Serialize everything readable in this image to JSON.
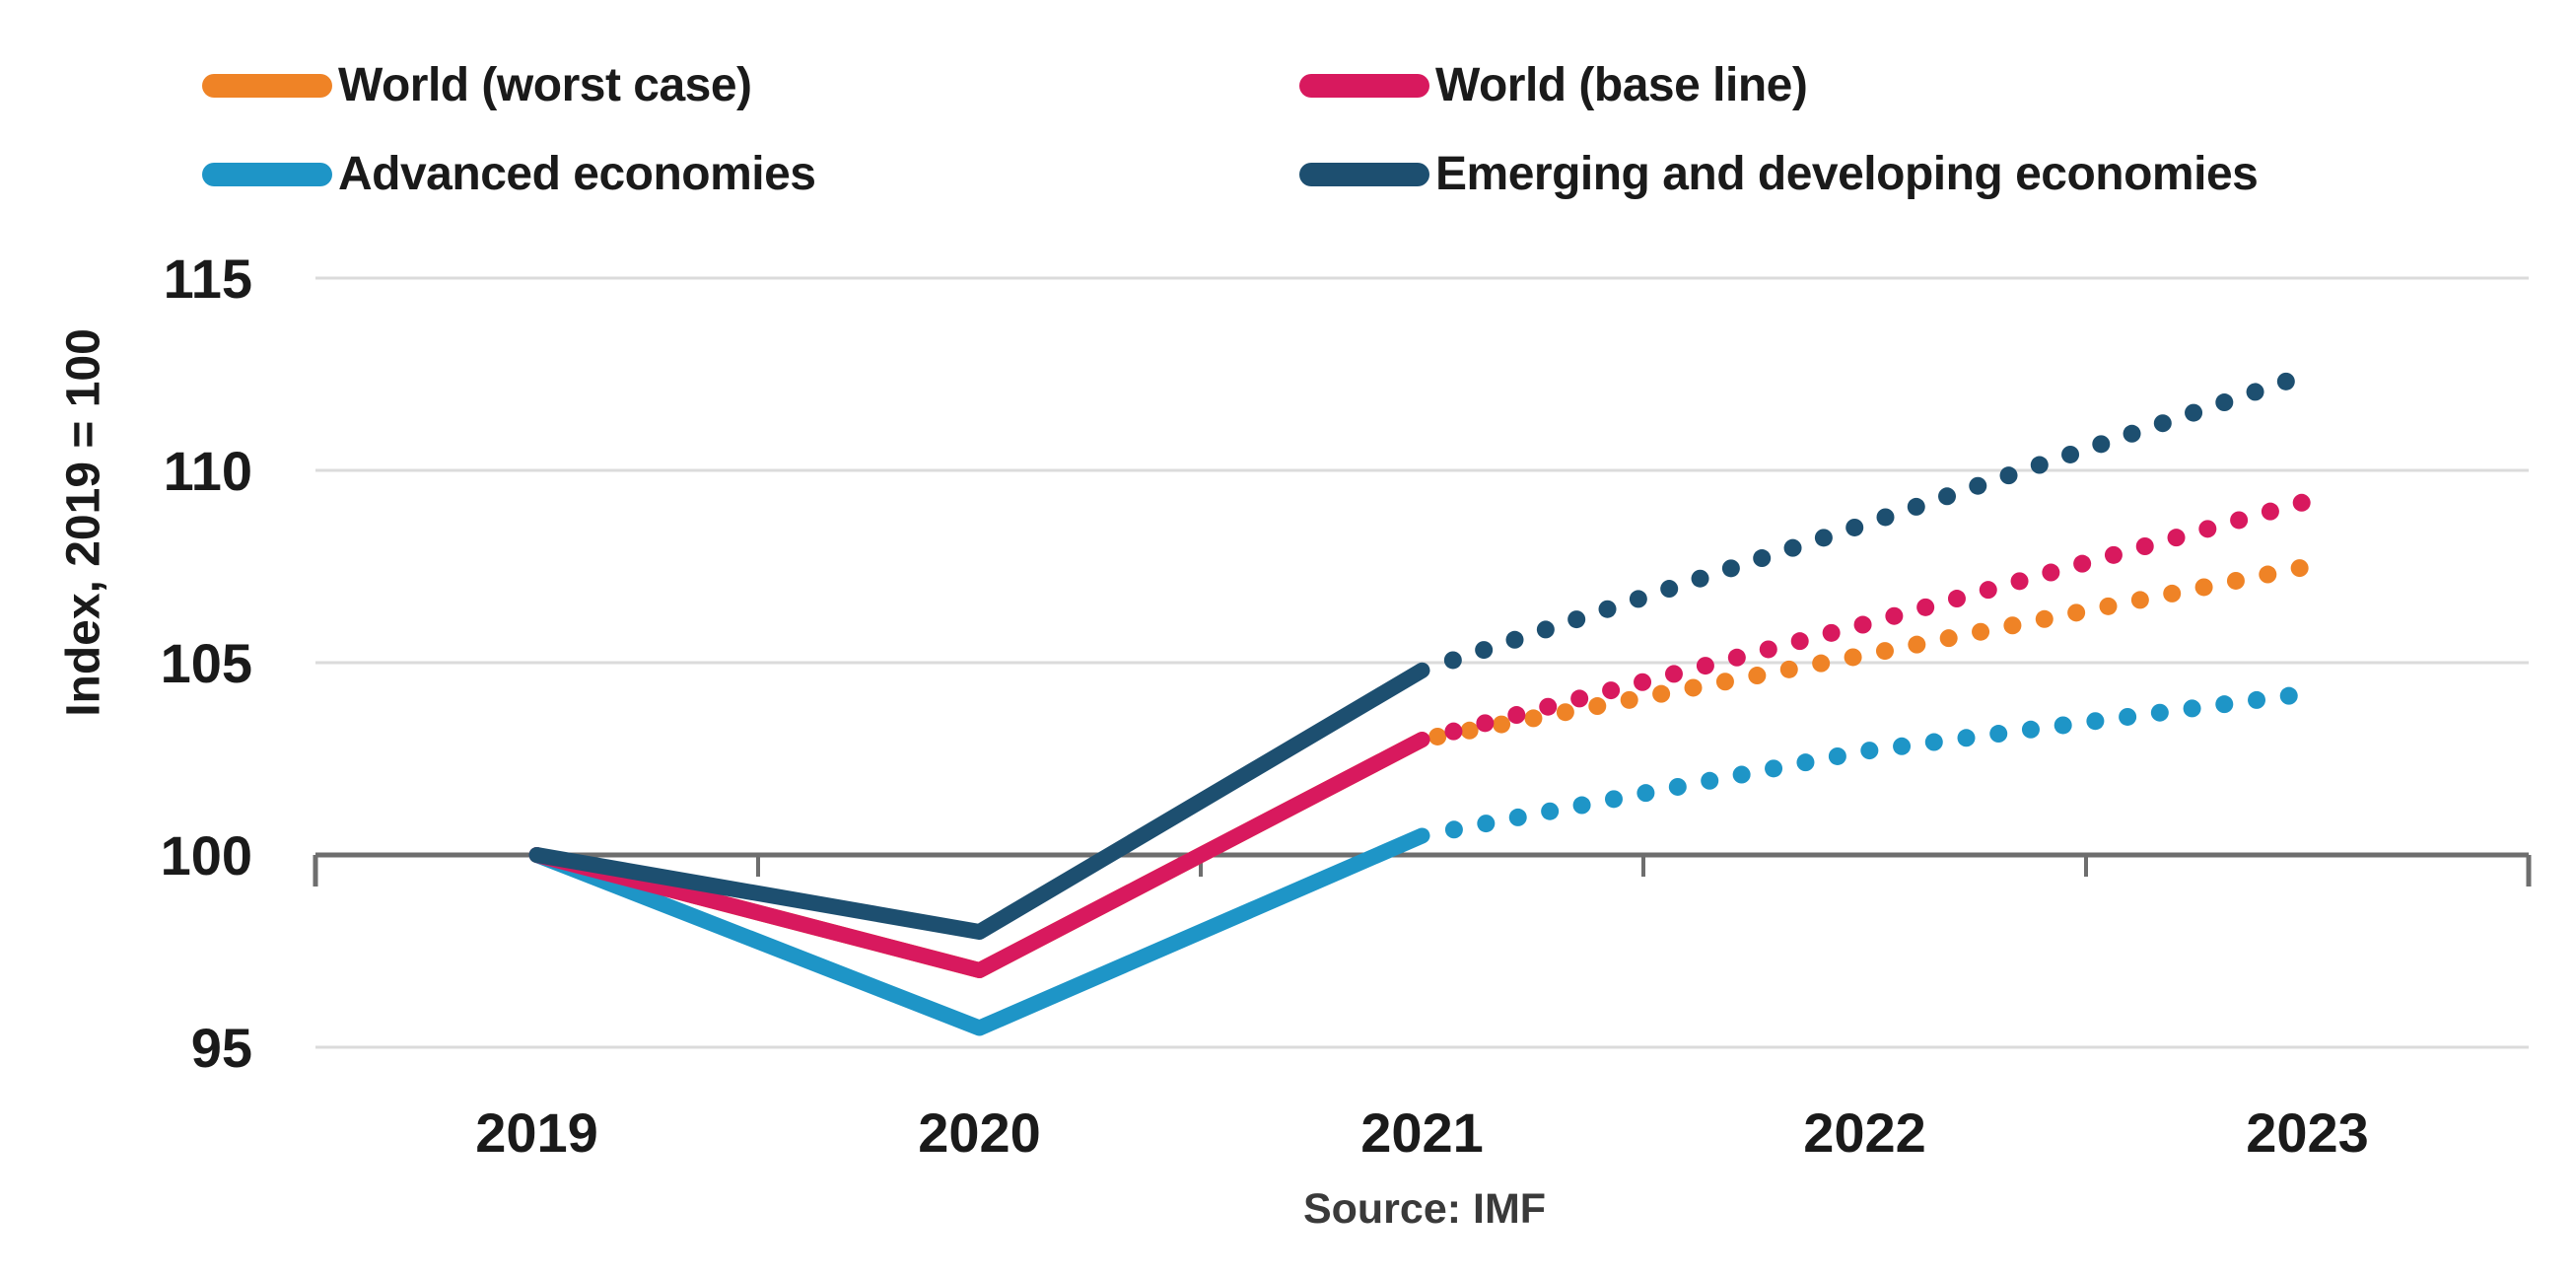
{
  "legend": {
    "items": [
      {
        "label": "World (worst case)",
        "color": "#EF8326"
      },
      {
        "label": "World (base line)",
        "color": "#D8195E"
      },
      {
        "label": "Advanced economies",
        "color": "#1E95C7"
      },
      {
        "label": "Emerging and developing economies",
        "color": "#1D4F70"
      }
    ]
  },
  "y_axis": {
    "title": "Index, 2019 = 100",
    "ticks": [
      95,
      100,
      105,
      110,
      115
    ],
    "min": 95,
    "max": 115
  },
  "x_axis": {
    "categories": [
      "2019",
      "2020",
      "2021",
      "2022",
      "2023"
    ]
  },
  "source": {
    "text": "Source: IMF"
  },
  "chart_data": {
    "type": "line",
    "x": [
      "2019",
      "2020",
      "2021",
      "2022",
      "2023"
    ],
    "series": [
      {
        "name": "World (worst case)",
        "color": "#EF8326",
        "values": [
          100,
          97,
          103,
          105.2,
          107.5
        ]
      },
      {
        "name": "World (base line)",
        "color": "#D8195E",
        "values": [
          100,
          97,
          103,
          106,
          109.2
        ]
      },
      {
        "name": "Advanced economies",
        "color": "#1E95C7",
        "values": [
          100,
          95.5,
          100.5,
          102.7,
          104.2
        ]
      },
      {
        "name": "Emerging and developing economies",
        "color": "#1D4F70",
        "values": [
          100,
          98,
          104.8,
          108.6,
          112.5
        ]
      }
    ],
    "solid_until": "2021",
    "projection_style": "dotted",
    "axis_cross": 100,
    "ylabel": "Index, 2019 = 100",
    "ylim": [
      95,
      115
    ],
    "grid": "horizontal",
    "legend_position": "top",
    "source": "Source: IMF"
  }
}
